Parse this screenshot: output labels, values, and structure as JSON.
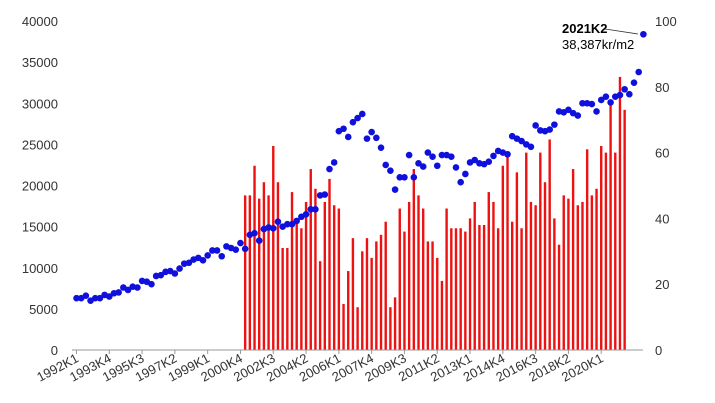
{
  "chart_data": {
    "type": "bar+scatter",
    "title": "",
    "xlabel": "",
    "ylabel_left": "",
    "ylabel_right": "",
    "x_tick_labels": [
      "1992K1",
      "1993K4",
      "1995K3",
      "1997K2",
      "1999K1",
      "2000K4",
      "2002K3",
      "2004K2",
      "2006K1",
      "2007K4",
      "2009K3",
      "2011K2",
      "2013K1",
      "2014K4",
      "2016K3",
      "2018K2",
      "2020K1"
    ],
    "y_left": {
      "min": 0,
      "max": 40000,
      "ticks": [
        "0",
        "5000",
        "10000",
        "15000",
        "20000",
        "25000",
        "30000",
        "35000",
        "40000"
      ]
    },
    "y_right": {
      "min": 0,
      "max": 100,
      "ticks": [
        "0",
        "20",
        "40",
        "60",
        "80",
        "100"
      ]
    },
    "colors": {
      "bars": "#ee1111",
      "points": "#1010dd",
      "axis": "#999999"
    },
    "series": [
      {
        "kind": "bar",
        "axis": "right",
        "start_index": 36,
        "values": [
          47,
          47,
          56,
          46,
          51,
          47,
          62,
          51,
          31,
          31,
          48,
          40,
          37,
          45,
          55,
          49,
          27,
          45,
          52,
          44,
          43,
          14,
          24,
          34,
          13,
          30,
          34,
          28,
          33,
          35,
          39,
          13,
          16,
          43,
          36,
          45,
          55,
          47,
          43,
          33,
          33,
          28,
          21,
          43,
          37,
          37,
          37,
          36,
          40,
          45,
          38,
          38,
          48,
          45,
          37,
          56,
          60,
          39,
          54,
          37,
          60,
          45,
          44,
          60,
          51,
          64,
          40,
          32,
          47,
          46,
          55,
          44,
          45,
          61,
          47,
          49,
          62,
          60,
          75,
          60,
          83,
          73
        ]
      },
      {
        "kind": "scatter",
        "axis": "left",
        "start_index": 0,
        "values": [
          6300,
          6300,
          6600,
          6000,
          6300,
          6300,
          6700,
          6500,
          6900,
          7000,
          7600,
          7300,
          7700,
          7600,
          8400,
          8300,
          8000,
          9000,
          9100,
          9500,
          9600,
          9300,
          9900,
          10500,
          10600,
          11000,
          11200,
          10900,
          11500,
          12100,
          12100,
          11400,
          12600,
          12400,
          12200,
          13000,
          12300,
          14000,
          14200,
          13300,
          14700,
          14900,
          14800,
          15600,
          15000,
          15300,
          15300,
          15700,
          16200,
          16500,
          17100,
          17100,
          18800,
          18900,
          22000,
          22800,
          26600,
          26900,
          25900,
          27700,
          28200,
          28700,
          25700,
          26500,
          25800,
          24600,
          22500,
          21800,
          19500,
          21000,
          21000,
          23700,
          21000,
          22700,
          22300,
          24000,
          23500,
          22400,
          23700,
          23700,
          23500,
          22200,
          20400,
          21400,
          22800,
          23100,
          22700,
          22600,
          22900,
          23600,
          24200,
          24000,
          23800,
          26000,
          25700,
          25400,
          25000,
          24700,
          27300,
          26700,
          26600,
          26800,
          27400,
          29000,
          28900,
          29200,
          28800,
          28500,
          30000,
          30000,
          29900,
          29000,
          30400,
          30800,
          30100,
          30800,
          31000,
          31700,
          31100,
          32500,
          33800,
          38387
        ]
      }
    ],
    "annotation": {
      "label": "2021K2",
      "value": "38,387kr/m2"
    }
  }
}
